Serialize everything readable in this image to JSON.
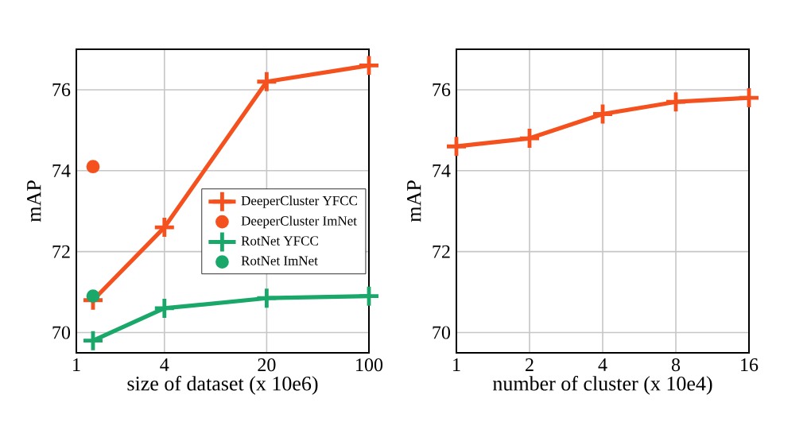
{
  "chart_data": [
    {
      "type": "line",
      "xlabel": "size of dataset (x 10e6)",
      "ylabel": "mAP",
      "log": "x",
      "xlim": [
        1,
        100
      ],
      "xticks": [
        1,
        4,
        20,
        100
      ],
      "ylim": [
        69.5,
        77
      ],
      "yticks": [
        70,
        72,
        74,
        76
      ],
      "grid": true,
      "legend": "right",
      "series": [
        {
          "name": "DeeperCluster YFCC",
          "color": "#f4511e",
          "marker": "cross",
          "x": [
            1.3,
            4,
            20,
            100
          ],
          "values": [
            70.8,
            72.6,
            76.2,
            76.6
          ]
        },
        {
          "name": "DeeperCluster ImNet",
          "type": "scatter",
          "color": "#f4511e",
          "marker": "circle",
          "x": [
            1.3
          ],
          "values": [
            74.1
          ]
        },
        {
          "name": "RotNet YFCC",
          "color": "#1aa86a",
          "marker": "cross",
          "x": [
            1.3,
            4,
            20,
            100
          ],
          "values": [
            69.8,
            70.6,
            70.85,
            70.9
          ]
        },
        {
          "name": "RotNet ImNet",
          "type": "scatter",
          "color": "#1aa86a",
          "marker": "circle",
          "x": [
            1.3
          ],
          "values": [
            70.9
          ]
        }
      ]
    },
    {
      "type": "line",
      "xlabel": "number of cluster (x 10e4)",
      "ylabel": "mAP",
      "log": "x",
      "xlim": [
        1,
        16
      ],
      "xticks": [
        1,
        2,
        4,
        8,
        16
      ],
      "ylim": [
        69.5,
        77
      ],
      "yticks": [
        70,
        72,
        74,
        76
      ],
      "grid": true,
      "series": [
        {
          "color": "#f4511e",
          "marker": "cross",
          "x": [
            1,
            2,
            4,
            8,
            16
          ],
          "values": [
            74.6,
            74.8,
            75.4,
            75.7,
            75.8
          ]
        }
      ]
    }
  ]
}
